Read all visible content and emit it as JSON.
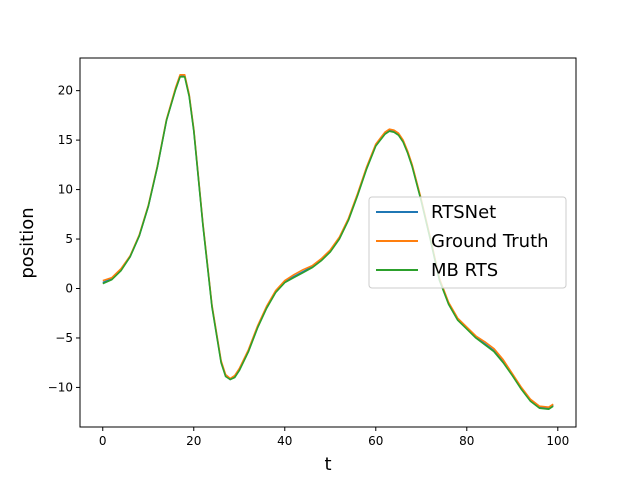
{
  "chart_data": {
    "type": "line",
    "xlabel": "t",
    "ylabel": "position",
    "xlim": [
      -5,
      104
    ],
    "ylim": [
      -14,
      23.3
    ],
    "xticks": [
      0,
      20,
      40,
      60,
      80,
      100
    ],
    "yticks": [
      -10,
      -5,
      0,
      5,
      10,
      15,
      20
    ],
    "xtick_labels": [
      "0",
      "20",
      "40",
      "60",
      "80",
      "100"
    ],
    "ytick_labels": [
      "−10",
      "−5",
      "0",
      "5",
      "10",
      "15",
      "20"
    ],
    "grid": false,
    "legend_position": "center-right",
    "x": [
      0,
      2,
      4,
      6,
      8,
      10,
      12,
      14,
      16,
      17,
      18,
      19,
      20,
      22,
      24,
      26,
      27,
      28,
      29,
      30,
      32,
      34,
      36,
      38,
      40,
      42,
      44,
      46,
      48,
      50,
      52,
      54,
      56,
      58,
      60,
      62,
      63,
      64,
      65,
      66,
      67,
      68,
      70,
      72,
      74,
      76,
      78,
      80,
      82,
      84,
      86,
      88,
      90,
      92,
      94,
      96,
      98,
      99
    ],
    "series": [
      {
        "name": "RTSNet",
        "color": "#1f77b4",
        "values": [
          0.6,
          1.0,
          1.9,
          3.2,
          5.3,
          8.3,
          12.3,
          17.0,
          20.2,
          21.5,
          21.5,
          19.5,
          16.0,
          6.5,
          -1.8,
          -7.4,
          -8.8,
          -9.2,
          -8.9,
          -8.2,
          -6.3,
          -3.9,
          -1.9,
          -0.3,
          0.7,
          1.2,
          1.7,
          2.2,
          2.9,
          3.8,
          5.1,
          7.0,
          9.5,
          12.2,
          14.5,
          15.7,
          16.0,
          15.9,
          15.6,
          14.9,
          13.8,
          12.4,
          8.9,
          5.0,
          0.9,
          -1.5,
          -3.1,
          -4.0,
          -4.9,
          -5.6,
          -6.3,
          -7.4,
          -8.7,
          -10.1,
          -11.3,
          -12.0,
          -12.1,
          -11.8
        ]
      },
      {
        "name": "Ground Truth",
        "color": "#ff7f0e",
        "values": [
          0.8,
          1.1,
          2.0,
          3.3,
          5.4,
          8.4,
          12.4,
          17.1,
          20.3,
          21.6,
          21.6,
          19.6,
          16.1,
          6.6,
          -1.7,
          -7.3,
          -8.7,
          -9.1,
          -8.8,
          -8.1,
          -6.2,
          -3.8,
          -1.8,
          -0.2,
          0.8,
          1.4,
          1.9,
          2.3,
          3.0,
          3.9,
          5.2,
          7.1,
          9.6,
          12.3,
          14.6,
          15.8,
          16.1,
          16.0,
          15.7,
          15.0,
          13.9,
          12.5,
          9.0,
          5.1,
          1.0,
          -1.4,
          -3.0,
          -3.9,
          -4.8,
          -5.4,
          -6.1,
          -7.2,
          -8.6,
          -10.0,
          -11.2,
          -11.9,
          -12.0,
          -11.7
        ]
      },
      {
        "name": "MB RTS",
        "color": "#2ca02c",
        "values": [
          0.5,
          0.9,
          1.8,
          3.2,
          5.3,
          8.3,
          12.3,
          17.0,
          20.1,
          21.4,
          21.4,
          19.4,
          15.9,
          6.4,
          -1.9,
          -7.5,
          -8.9,
          -9.2,
          -9.0,
          -8.3,
          -6.4,
          -4.0,
          -2.0,
          -0.4,
          0.6,
          1.1,
          1.6,
          2.1,
          2.8,
          3.7,
          5.0,
          6.9,
          9.4,
          12.1,
          14.4,
          15.6,
          15.9,
          15.8,
          15.5,
          14.8,
          13.7,
          12.3,
          8.8,
          4.9,
          0.8,
          -1.6,
          -3.2,
          -4.1,
          -5.0,
          -5.7,
          -6.4,
          -7.5,
          -8.8,
          -10.2,
          -11.4,
          -12.1,
          -12.2,
          -11.9
        ]
      }
    ]
  }
}
